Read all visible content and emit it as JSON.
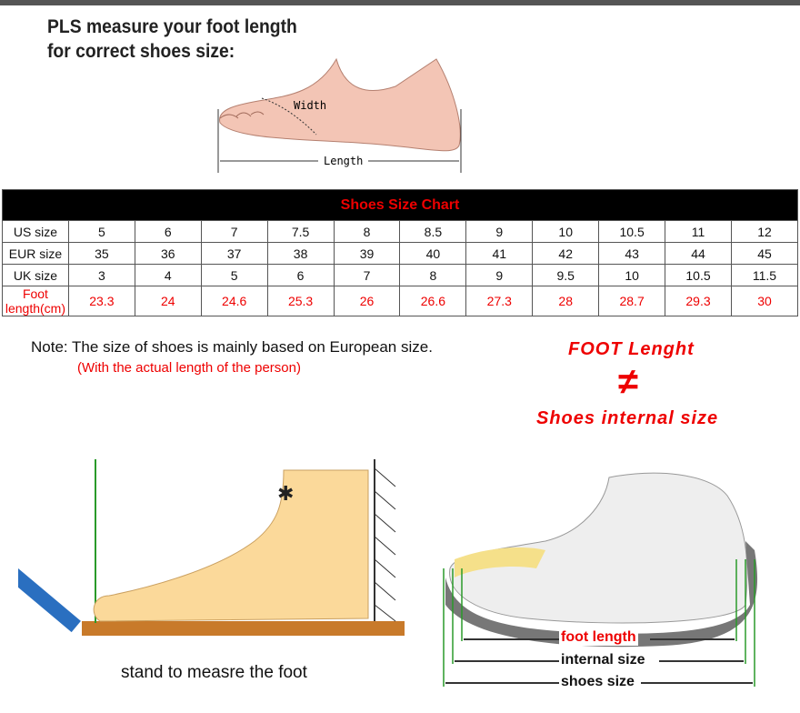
{
  "header": {
    "title_line1": "PLS measure your foot length",
    "title_line2": "for correct shoes size:"
  },
  "top_illustration": {
    "width_label": "Width",
    "length_label": "Length"
  },
  "size_chart": {
    "title": "Shoes Size Chart",
    "rows": [
      {
        "label": "US size",
        "values": [
          "5",
          "6",
          "7",
          "7.5",
          "8",
          "8.5",
          "9",
          "10",
          "10.5",
          "11",
          "12"
        ]
      },
      {
        "label": "EUR size",
        "values": [
          "35",
          "36",
          "37",
          "38",
          "39",
          "40",
          "41",
          "42",
          "43",
          "44",
          "45"
        ]
      },
      {
        "label": "UK size",
        "values": [
          "3",
          "4",
          "5",
          "6",
          "7",
          "8",
          "9",
          "9.5",
          "10",
          "10.5",
          "11.5"
        ]
      },
      {
        "label": "Foot length(cm)",
        "values": [
          "23.3",
          "24",
          "24.6",
          "25.3",
          "26",
          "26.6",
          "27.3",
          "28",
          "28.7",
          "29.3",
          "30"
        ]
      }
    ],
    "highlight_color": "#e00000"
  },
  "note": {
    "text": "Note: The size of shoes is mainly based on European size.",
    "subtext": "(With the actual length of the person)"
  },
  "comparison": {
    "top": "FOOT Lenght",
    "symbol": "≠",
    "bottom": "Shoes internal size"
  },
  "left_illustration": {
    "caption": "stand to measre the foot"
  },
  "right_illustration": {
    "foot_length": "foot length",
    "internal_size": "internal size",
    "shoes_size": "shoes size"
  }
}
